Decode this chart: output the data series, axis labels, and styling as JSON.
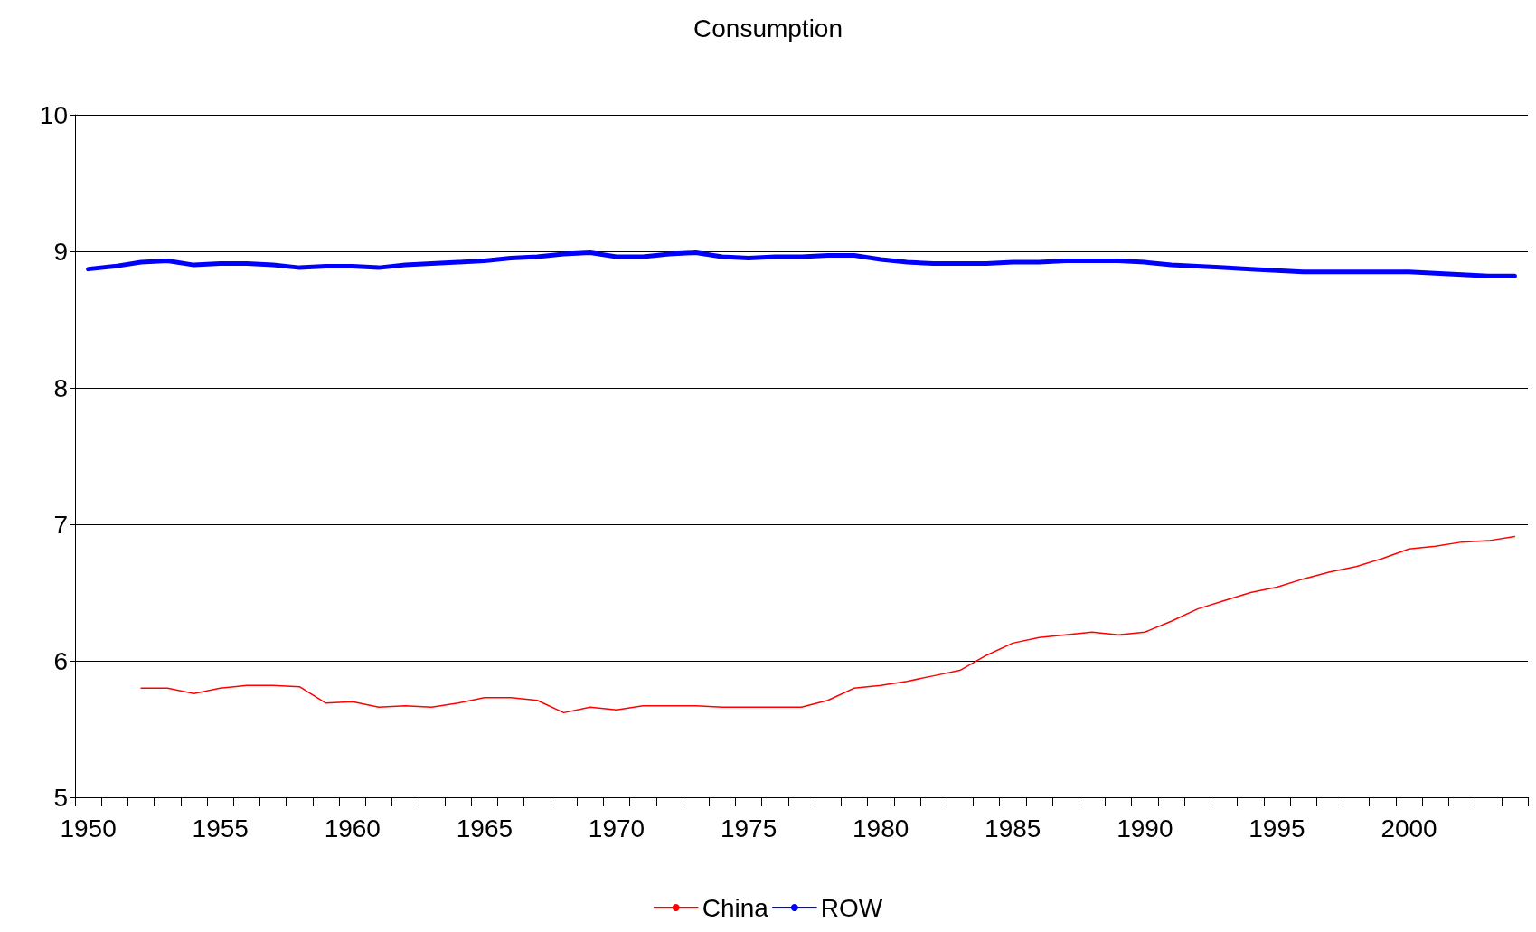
{
  "chart_data": {
    "type": "line",
    "title": "Consumption",
    "categories": [
      "1950",
      null,
      null,
      null,
      null,
      "1955",
      null,
      null,
      null,
      null,
      "1960",
      null,
      null,
      null,
      null,
      "1965",
      null,
      null,
      null,
      null,
      "1970",
      null,
      null,
      null,
      null,
      "1975",
      null,
      null,
      null,
      null,
      "1980",
      null,
      null,
      null,
      null,
      "1985",
      null,
      null,
      null,
      null,
      "1990",
      null,
      null,
      null,
      null,
      "1995",
      null,
      null,
      null,
      null,
      "2000",
      null,
      null,
      null,
      null
    ],
    "series": [
      {
        "name": "China",
        "color": "#ff0000",
        "values": [
          null,
          null,
          5.8,
          5.8,
          5.76,
          5.8,
          5.82,
          5.82,
          5.81,
          5.69,
          5.7,
          5.66,
          5.67,
          5.66,
          5.69,
          5.73,
          5.73,
          5.71,
          5.62,
          5.66,
          5.64,
          5.67,
          5.67,
          5.67,
          5.66,
          5.66,
          5.66,
          5.66,
          5.71,
          5.8,
          5.82,
          5.85,
          5.89,
          5.93,
          6.04,
          6.13,
          6.17,
          6.19,
          6.21,
          6.19,
          6.21,
          6.29,
          6.38,
          6.44,
          6.5,
          6.54,
          6.6,
          6.65,
          6.69,
          6.75,
          6.82,
          6.84,
          6.87,
          6.88,
          6.91
        ]
      },
      {
        "name": "ROW",
        "color": "#0000ff",
        "values": [
          8.87,
          8.89,
          8.92,
          8.93,
          8.9,
          8.91,
          8.91,
          8.9,
          8.88,
          8.89,
          8.89,
          8.88,
          8.9,
          8.91,
          8.92,
          8.93,
          8.95,
          8.96,
          8.98,
          8.99,
          8.96,
          8.96,
          8.98,
          8.99,
          8.96,
          8.95,
          8.96,
          8.96,
          8.97,
          8.97,
          8.94,
          8.92,
          8.91,
          8.91,
          8.91,
          8.92,
          8.92,
          8.93,
          8.93,
          8.93,
          8.92,
          8.9,
          8.89,
          8.88,
          8.87,
          8.86,
          8.85,
          8.85,
          8.85,
          8.85,
          8.85,
          8.84,
          8.83,
          8.82,
          8.82
        ]
      }
    ],
    "ylim": [
      5,
      10
    ],
    "yticks": [
      5,
      6,
      7,
      8,
      9,
      10
    ],
    "grid": "y",
    "legend": "bottom",
    "marker": "none",
    "line_style": "solid"
  }
}
